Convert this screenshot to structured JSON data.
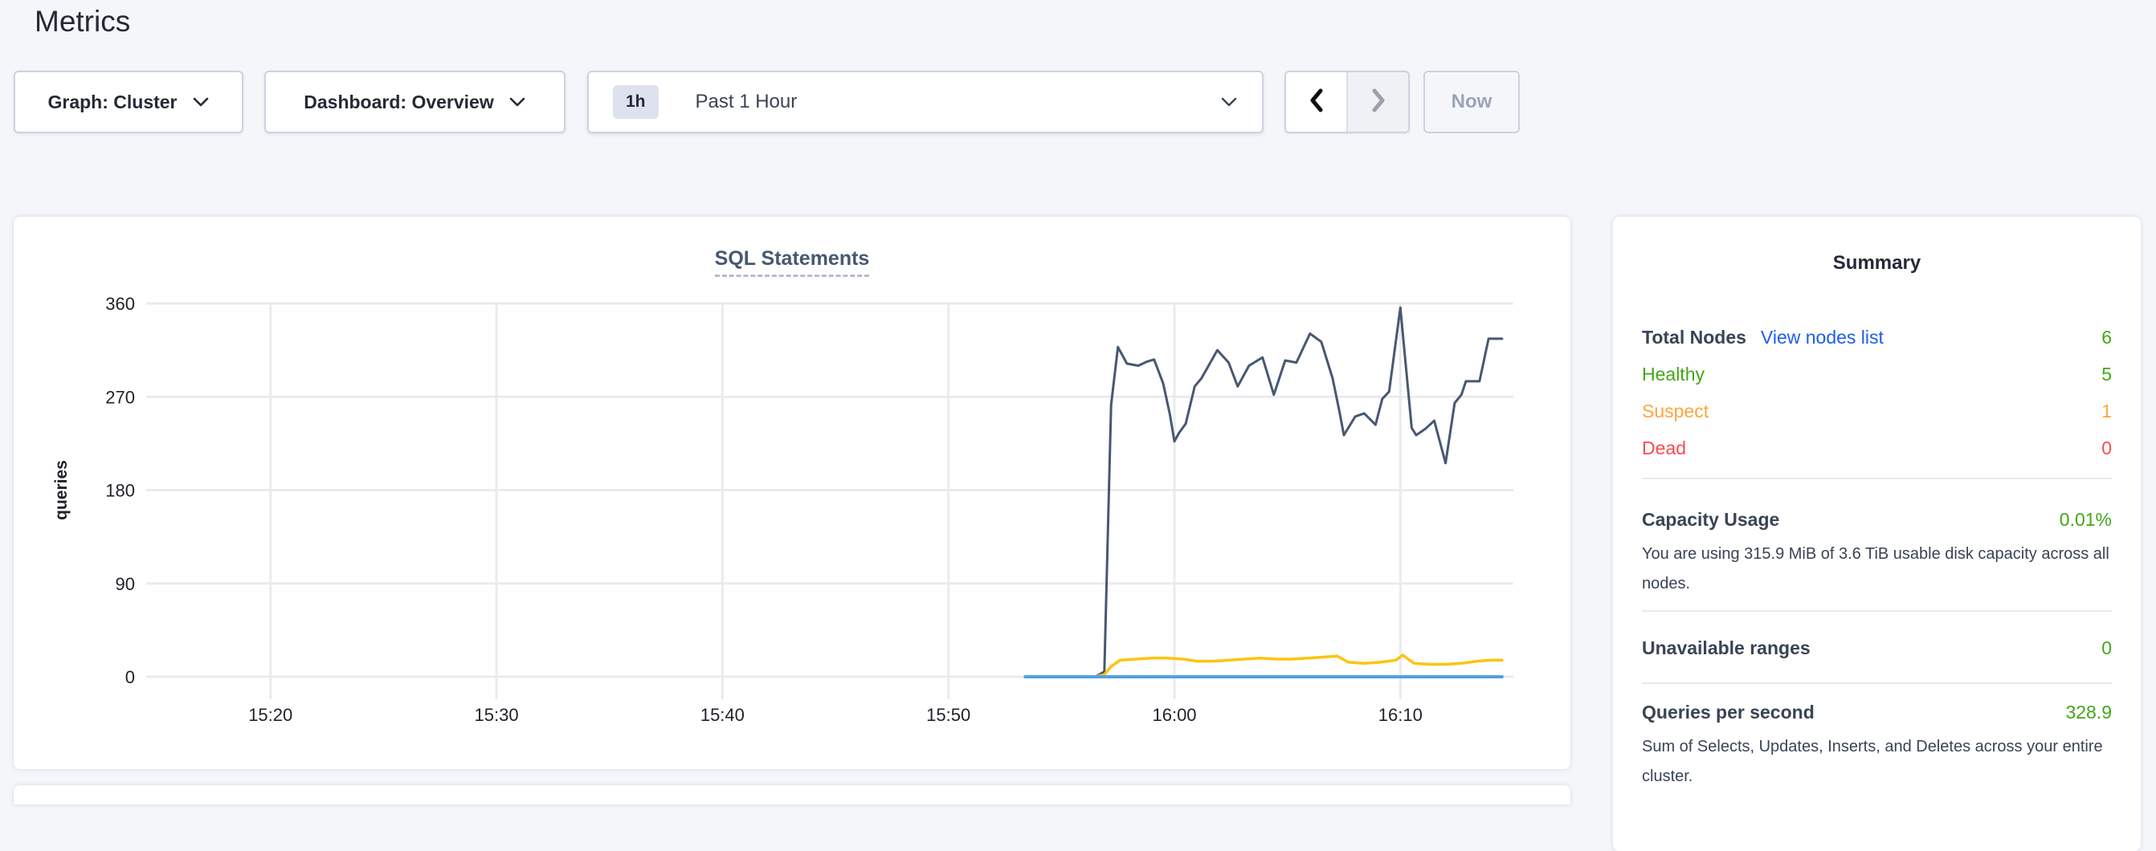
{
  "page": {
    "title": "Metrics"
  },
  "toolbar": {
    "graph_dropdown": {
      "label": "Graph: Cluster"
    },
    "dashboard_dropdown": {
      "label": "Dashboard: Overview"
    },
    "time_picker": {
      "badge": "1h",
      "label": "Past 1 Hour"
    },
    "pager": {
      "prev_enabled": true,
      "next_enabled": false
    },
    "now_button": {
      "label": "Now",
      "enabled": false
    }
  },
  "icons": {
    "dropdown": "chevron-down",
    "pager_prev": "chevron-left",
    "pager_next": "chevron-right"
  },
  "chart_data": {
    "type": "line",
    "title": "SQL Statements",
    "xlabel": "",
    "ylabel": "queries",
    "yticks": [
      0,
      90,
      180,
      270,
      360
    ],
    "ylim": [
      0,
      360
    ],
    "grid": true,
    "legend_position": "none",
    "x_axis": {
      "tick_labels": [
        "15:20",
        "15:30",
        "15:40",
        "15:50",
        "16:00",
        "16:10"
      ],
      "tick_minutes": [
        0,
        10,
        20,
        30,
        40,
        50
      ],
      "domain_minutes": [
        -5.5,
        55
      ],
      "reference": "minutes relative to 15:20"
    },
    "series": [
      {
        "name": "dark-slate-line",
        "color": "#475872",
        "width": 3,
        "points": [
          [
            33.4,
            0
          ],
          [
            34.2,
            0
          ],
          [
            35.0,
            0
          ],
          [
            35.8,
            0
          ],
          [
            36.5,
            0
          ],
          [
            36.9,
            5
          ],
          [
            37.2,
            262
          ],
          [
            37.5,
            318
          ],
          [
            37.9,
            302
          ],
          [
            38.4,
            300
          ],
          [
            38.8,
            304
          ],
          [
            39.1,
            306
          ],
          [
            39.5,
            283
          ],
          [
            39.8,
            253
          ],
          [
            40.0,
            227
          ],
          [
            40.2,
            235
          ],
          [
            40.5,
            244
          ],
          [
            40.9,
            280
          ],
          [
            41.2,
            288
          ],
          [
            41.9,
            315
          ],
          [
            42.4,
            303
          ],
          [
            42.8,
            280
          ],
          [
            43.3,
            300
          ],
          [
            43.9,
            308
          ],
          [
            44.4,
            272
          ],
          [
            44.9,
            305
          ],
          [
            45.4,
            303
          ],
          [
            46.0,
            331
          ],
          [
            46.5,
            323
          ],
          [
            47.0,
            288
          ],
          [
            47.3,
            256
          ],
          [
            47.5,
            233
          ],
          [
            48.0,
            251
          ],
          [
            48.4,
            254
          ],
          [
            48.9,
            243
          ],
          [
            49.2,
            268
          ],
          [
            49.5,
            275
          ],
          [
            50.0,
            356
          ],
          [
            50.5,
            240
          ],
          [
            50.7,
            233
          ],
          [
            51.1,
            239
          ],
          [
            51.5,
            247
          ],
          [
            52.0,
            206
          ],
          [
            52.4,
            264
          ],
          [
            52.7,
            272
          ],
          [
            52.9,
            285
          ],
          [
            53.5,
            285
          ],
          [
            53.9,
            326
          ],
          [
            54.5,
            326
          ]
        ]
      },
      {
        "name": "yellow-line",
        "color": "#fcc40f",
        "width": 3.5,
        "points": [
          [
            33.4,
            0
          ],
          [
            34.2,
            0
          ],
          [
            35.0,
            0
          ],
          [
            35.8,
            0
          ],
          [
            36.5,
            0
          ],
          [
            36.9,
            2
          ],
          [
            37.2,
            10
          ],
          [
            37.6,
            16
          ],
          [
            38.3,
            17
          ],
          [
            39.0,
            18
          ],
          [
            39.7,
            18
          ],
          [
            40.4,
            17
          ],
          [
            41.0,
            15
          ],
          [
            41.7,
            15
          ],
          [
            42.4,
            16
          ],
          [
            43.1,
            17
          ],
          [
            43.8,
            18
          ],
          [
            44.5,
            17
          ],
          [
            45.2,
            17
          ],
          [
            45.9,
            18
          ],
          [
            46.6,
            19
          ],
          [
            47.2,
            20
          ],
          [
            47.7,
            14
          ],
          [
            48.4,
            13
          ],
          [
            49.1,
            14
          ],
          [
            49.8,
            16
          ],
          [
            50.1,
            21
          ],
          [
            50.6,
            13
          ],
          [
            51.3,
            12
          ],
          [
            52.0,
            12
          ],
          [
            52.7,
            13
          ],
          [
            53.4,
            15
          ],
          [
            54.0,
            16
          ],
          [
            54.5,
            16
          ]
        ]
      },
      {
        "name": "blue-line",
        "color": "#54a0e2",
        "width": 4,
        "points": [
          [
            33.4,
            0
          ],
          [
            54.5,
            0
          ]
        ]
      }
    ]
  },
  "summary": {
    "title": "Summary",
    "nodes": {
      "label": "Total Nodes",
      "link": "View nodes list",
      "value": "6",
      "rows": [
        {
          "label": "Healthy",
          "value": "5",
          "color_key": "green"
        },
        {
          "label": "Suspect",
          "value": "1",
          "color_key": "orange"
        },
        {
          "label": "Dead",
          "value": "0",
          "color_key": "red"
        }
      ]
    },
    "capacity": {
      "label": "Capacity Usage",
      "value": "0.01%",
      "description": "You are using 315.9 MiB of 3.6 TiB usable disk capacity across all nodes."
    },
    "unavailable": {
      "label": "Unavailable ranges",
      "value": "0"
    },
    "qps": {
      "label": "Queries per second",
      "value": "328.9",
      "description": "Sum of Selects, Updates, Inserts, and Deletes across your entire cluster."
    }
  },
  "colors": {
    "green": "#42a717",
    "orange": "#ffa53b",
    "red": "#fb4953",
    "link_blue": "#1f5cf0",
    "heading": "#242a35",
    "slate_text": "#394455",
    "chart_title": "#475872",
    "gridline": "#e9ebef",
    "axis_text": "#1e2228"
  }
}
